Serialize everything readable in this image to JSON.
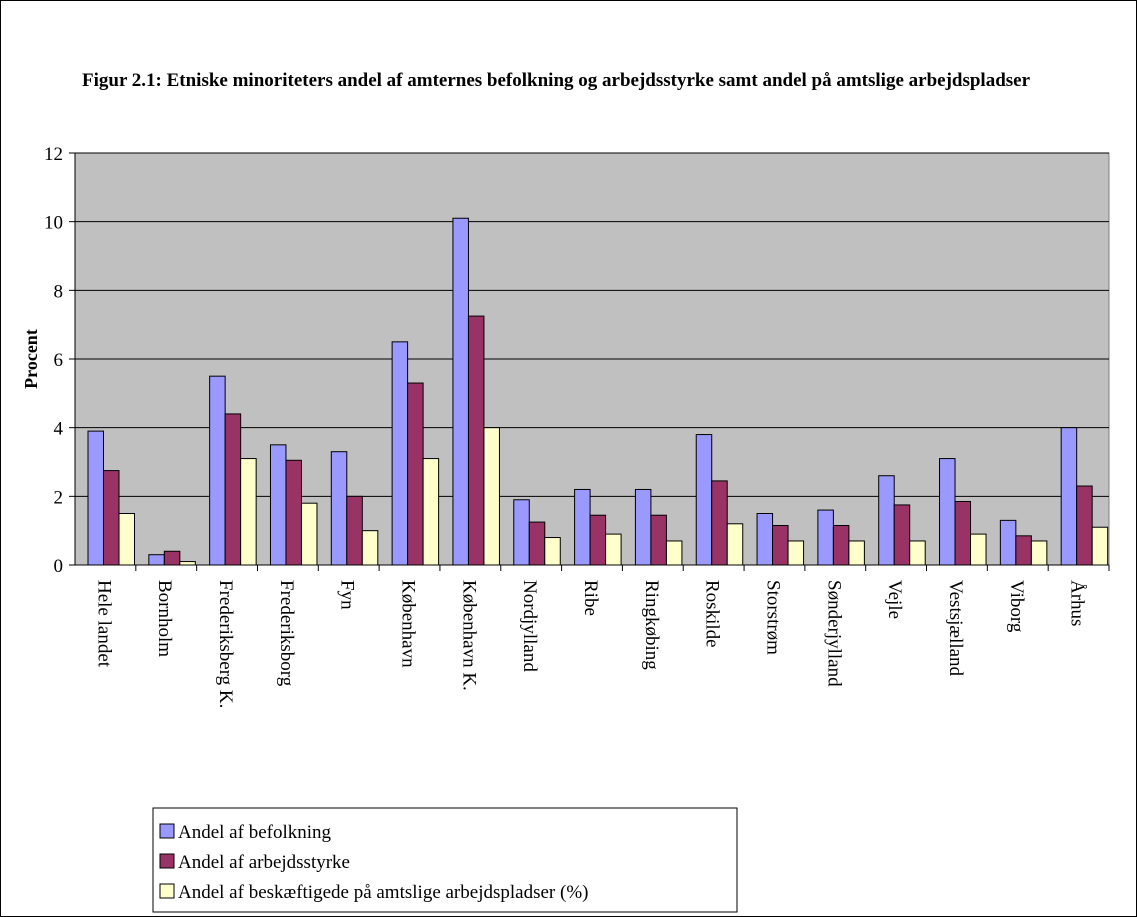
{
  "chart_data": {
    "type": "bar",
    "title": "Figur 2.1: Etniske minoriteters andel af amternes befolkning og arbejdsstyrke samt andel på amtslige arbejdspladser",
    "xlabel": "",
    "ylabel": "Procent",
    "ylim": [
      0,
      12
    ],
    "yticks": [
      0,
      2,
      4,
      6,
      8,
      10,
      12
    ],
    "grid": true,
    "legend_position": "bottom-left",
    "plot_background": "#c0c0c0",
    "categories": [
      "Hele landet",
      "Bornholm",
      "Frederiksberg K.",
      "Frederiksborg",
      "Fyn",
      "København",
      "København K.",
      "Nordjylland",
      "Ribe",
      "Ringkøbing",
      "Roskilde",
      "Storstrøm",
      "Sønderjylland",
      "Vejle",
      "Vestsjælland",
      "Viborg",
      "Århus"
    ],
    "series": [
      {
        "name": "Andel af befolkning",
        "color": "#9999ff",
        "values": [
          3.9,
          0.3,
          5.5,
          3.5,
          3.3,
          6.5,
          10.1,
          1.9,
          2.2,
          2.2,
          3.8,
          1.5,
          1.6,
          2.6,
          3.1,
          1.3,
          4.0
        ]
      },
      {
        "name": "Andel af arbejdsstyrke",
        "color": "#993366",
        "values": [
          2.75,
          0.4,
          4.4,
          3.05,
          2.0,
          5.3,
          7.25,
          1.25,
          1.45,
          1.45,
          2.45,
          1.15,
          1.15,
          1.75,
          1.85,
          0.85,
          2.3
        ]
      },
      {
        "name": "Andel af beskæftigede på amtslige arbejdspladser (%)",
        "color": "#ffffcc",
        "values": [
          1.5,
          0.1,
          3.1,
          1.8,
          1.0,
          3.1,
          4.0,
          0.8,
          0.9,
          0.7,
          1.2,
          0.7,
          0.7,
          0.7,
          0.9,
          0.7,
          1.1
        ]
      }
    ]
  }
}
